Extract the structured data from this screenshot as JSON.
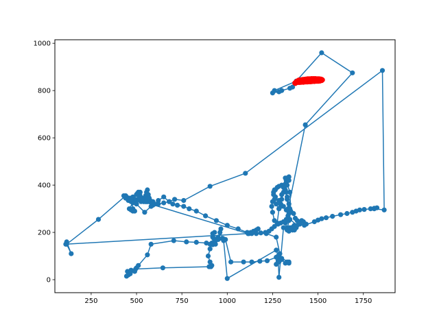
{
  "chart_data": {
    "type": "scatter",
    "title": "",
    "xlabel": "",
    "ylabel": "",
    "xlim": [
      50,
      1925
    ],
    "ylim": [
      -55,
      1015
    ],
    "grid": false,
    "x_ticks": [
      250,
      500,
      750,
      1000,
      1250,
      1500,
      1750
    ],
    "y_ticks": [
      0,
      200,
      400,
      600,
      800,
      1000
    ],
    "colors": {
      "main": "#1f77b4",
      "highlight": "#ff0000",
      "axes": "#000000",
      "background": "#ffffff"
    },
    "series": [
      {
        "style": "line-with-markers",
        "color": "#1f77b4",
        "points": [
          [
            1520,
            845
          ],
          [
            1375,
            830
          ],
          [
            1360,
            815
          ],
          [
            1345,
            810
          ],
          [
            1300,
            800
          ],
          [
            1285,
            795
          ],
          [
            1250,
            790
          ],
          [
            1260,
            800
          ],
          [
            1380,
            840
          ],
          [
            1520,
            960
          ],
          [
            1690,
            875
          ],
          [
            1430,
            655
          ],
          [
            1320,
            240
          ],
          [
            1330,
            210
          ],
          [
            1340,
            250
          ],
          [
            1335,
            300
          ],
          [
            1330,
            340
          ],
          [
            1325,
            370
          ],
          [
            1320,
            405
          ],
          [
            1325,
            420
          ],
          [
            1330,
            430
          ],
          [
            1320,
            400
          ],
          [
            1310,
            370
          ],
          [
            1300,
            340
          ],
          [
            1295,
            310
          ],
          [
            1285,
            300
          ],
          [
            1270,
            320
          ],
          [
            1260,
            340
          ],
          [
            1255,
            370
          ],
          [
            1260,
            380
          ],
          [
            1265,
            350
          ],
          [
            1250,
            330
          ],
          [
            1245,
            310
          ],
          [
            1250,
            285
          ],
          [
            1260,
            250
          ],
          [
            1275,
            240
          ],
          [
            1285,
            300
          ],
          [
            1300,
            360
          ],
          [
            1310,
            390
          ],
          [
            1320,
            430
          ],
          [
            1345,
            370
          ],
          [
            1350,
            290
          ],
          [
            1365,
            280
          ],
          [
            1375,
            260
          ],
          [
            1385,
            250
          ],
          [
            1400,
            235
          ],
          [
            1380,
            220
          ],
          [
            1360,
            210
          ],
          [
            1340,
            205
          ],
          [
            1330,
            220
          ],
          [
            1350,
            215
          ],
          [
            1370,
            230
          ],
          [
            1395,
            240
          ],
          [
            1410,
            250
          ],
          [
            1420,
            245
          ],
          [
            1435,
            235
          ],
          [
            1425,
            230
          ],
          [
            1480,
            245
          ],
          [
            1500,
            252
          ],
          [
            1520,
            258
          ],
          [
            1545,
            262
          ],
          [
            1580,
            268
          ],
          [
            1625,
            275
          ],
          [
            1660,
            280
          ],
          [
            1690,
            285
          ],
          [
            1710,
            290
          ],
          [
            1730,
            295
          ],
          [
            1755,
            297
          ],
          [
            1790,
            300
          ],
          [
            1810,
            302
          ],
          [
            1825,
            304
          ],
          [
            1810,
            300
          ],
          [
            1865,
            295
          ],
          [
            1855,
            885
          ],
          [
            1100,
            450
          ],
          [
            905,
            395
          ],
          [
            760,
            335
          ],
          [
            710,
            340
          ],
          [
            680,
            330
          ],
          [
            650,
            325
          ],
          [
            620,
            320
          ],
          [
            590,
            315
          ],
          [
            560,
            330
          ],
          [
            545,
            340
          ],
          [
            520,
            355
          ],
          [
            500,
            360
          ],
          [
            480,
            350
          ],
          [
            460,
            345
          ],
          [
            445,
            350
          ],
          [
            430,
            355
          ],
          [
            440,
            345
          ],
          [
            455,
            335
          ],
          [
            470,
            330
          ],
          [
            490,
            335
          ],
          [
            510,
            340
          ],
          [
            530,
            345
          ],
          [
            545,
            340
          ],
          [
            555,
            345
          ],
          [
            565,
            350
          ],
          [
            560,
            355
          ],
          [
            555,
            360
          ],
          [
            550,
            355
          ],
          [
            540,
            345
          ],
          [
            530,
            340
          ],
          [
            520,
            370
          ],
          [
            510,
            370
          ],
          [
            505,
            365
          ],
          [
            500,
            360
          ],
          [
            510,
            340
          ],
          [
            525,
            330
          ],
          [
            540,
            330
          ],
          [
            555,
            330
          ],
          [
            560,
            340
          ],
          [
            555,
            370
          ],
          [
            560,
            380
          ],
          [
            565,
            360
          ],
          [
            570,
            345
          ],
          [
            575,
            335
          ],
          [
            580,
            330
          ],
          [
            590,
            330
          ],
          [
            560,
            330
          ],
          [
            540,
            330
          ],
          [
            520,
            335
          ],
          [
            490,
            335
          ],
          [
            475,
            335
          ],
          [
            465,
            340
          ],
          [
            470,
            345
          ],
          [
            480,
            300
          ],
          [
            490,
            290
          ],
          [
            480,
            290
          ],
          [
            470,
            295
          ],
          [
            460,
            300
          ],
          [
            480,
            325
          ],
          [
            500,
            335
          ],
          [
            520,
            340
          ],
          [
            550,
            330
          ],
          [
            580,
            330
          ],
          [
            590,
            330
          ],
          [
            550,
            330
          ],
          [
            530,
            340
          ],
          [
            490,
            340
          ],
          [
            470,
            345
          ],
          [
            1115,
            195
          ],
          [
            1130,
            200
          ],
          [
            1145,
            205
          ],
          [
            1160,
            210
          ],
          [
            1170,
            215
          ],
          [
            1140,
            200
          ],
          [
            1120,
            195
          ],
          [
            1215,
            195
          ],
          [
            1270,
            180
          ],
          [
            1290,
            110
          ],
          [
            1285,
            75
          ],
          [
            1270,
            65
          ],
          [
            1280,
            80
          ],
          [
            1300,
            85
          ],
          [
            1320,
            70
          ],
          [
            1330,
            75
          ],
          [
            1340,
            70
          ],
          [
            1340,
            75
          ],
          [
            1300,
            90
          ],
          [
            1270,
            95
          ],
          [
            1220,
            80
          ],
          [
            1180,
            78
          ],
          [
            1135,
            75
          ],
          [
            1090,
            75
          ],
          [
            1020,
            75
          ],
          [
            990,
            170
          ],
          [
            975,
            175
          ],
          [
            960,
            200
          ],
          [
            965,
            215
          ],
          [
            950,
            180
          ],
          [
            935,
            165
          ],
          [
            920,
            180
          ],
          [
            920,
            195
          ],
          [
            930,
            200
          ],
          [
            925,
            175
          ],
          [
            915,
            155
          ],
          [
            905,
            130
          ],
          [
            895,
            100
          ],
          [
            905,
            75
          ],
          [
            915,
            60
          ],
          [
            910,
            55
          ],
          [
            900,
            55
          ],
          [
            645,
            50
          ],
          [
            495,
            45
          ],
          [
            470,
            40
          ],
          [
            450,
            35
          ],
          [
            445,
            15
          ],
          [
            455,
            20
          ],
          [
            465,
            25
          ],
          [
            490,
            35
          ],
          [
            500,
            50
          ],
          [
            510,
            60
          ],
          [
            560,
            105
          ],
          [
            580,
            150
          ],
          [
            705,
            165
          ],
          [
            775,
            160
          ],
          [
            830,
            158
          ],
          [
            885,
            155
          ],
          [
            905,
            150
          ],
          [
            920,
            148
          ],
          [
            935,
            150
          ],
          [
            950,
            170
          ],
          [
            980,
            165
          ],
          [
            1000,
            5
          ],
          [
            1270,
            125
          ],
          [
            1280,
            100
          ],
          [
            1285,
            10
          ],
          [
            1310,
            220
          ],
          [
            1345,
            220
          ],
          [
            1355,
            220
          ],
          [
            1360,
            210
          ],
          [
            1365,
            225
          ],
          [
            1370,
            210
          ],
          [
            1375,
            220
          ],
          [
            1385,
            230
          ],
          [
            1345,
            255
          ],
          [
            1335,
            270
          ],
          [
            1325,
            295
          ],
          [
            1310,
            310
          ],
          [
            1295,
            320
          ],
          [
            1285,
            335
          ],
          [
            1265,
            350
          ],
          [
            1255,
            360
          ],
          [
            1265,
            380
          ],
          [
            1275,
            390
          ],
          [
            1285,
            395
          ],
          [
            1300,
            400
          ],
          [
            1315,
            400
          ],
          [
            1325,
            410
          ],
          [
            1335,
            420
          ],
          [
            1340,
            435
          ],
          [
            1340,
            420
          ],
          [
            1330,
            400
          ],
          [
            1320,
            380
          ],
          [
            1330,
            350
          ],
          [
            1340,
            320
          ],
          [
            1345,
            300
          ],
          [
            1340,
            280
          ],
          [
            1335,
            270
          ],
          [
            1325,
            255
          ],
          [
            1310,
            245
          ],
          [
            1295,
            240
          ],
          [
            1280,
            235
          ],
          [
            1260,
            225
          ],
          [
            1245,
            215
          ],
          [
            1230,
            205
          ],
          [
            1210,
            200
          ],
          [
            1185,
            198
          ],
          [
            1160,
            195
          ],
          [
            1135,
            195
          ],
          [
            1115,
            195
          ],
          [
            110,
            150
          ],
          [
            115,
            160
          ],
          [
            140,
            110
          ],
          [
            115,
            150
          ],
          [
            290,
            255
          ],
          [
            440,
            355
          ],
          [
            470,
            340
          ],
          [
            500,
            320
          ],
          [
            545,
            285
          ],
          [
            580,
            310
          ],
          [
            600,
            320
          ],
          [
            620,
            335
          ],
          [
            650,
            350
          ],
          [
            680,
            330
          ],
          [
            700,
            320
          ],
          [
            725,
            315
          ],
          [
            760,
            310
          ],
          [
            790,
            300
          ],
          [
            830,
            290
          ],
          [
            880,
            270
          ],
          [
            940,
            250
          ],
          [
            1000,
            230
          ],
          [
            1060,
            215
          ],
          [
            1110,
            200
          ]
        ]
      },
      {
        "style": "markers",
        "color": "#ff0000",
        "points": [
          [
            1375,
            830
          ],
          [
            1380,
            838
          ],
          [
            1388,
            842
          ],
          [
            1395,
            845
          ],
          [
            1405,
            846
          ],
          [
            1415,
            847
          ],
          [
            1425,
            848
          ],
          [
            1435,
            849
          ],
          [
            1445,
            850
          ],
          [
            1455,
            850
          ],
          [
            1465,
            851
          ],
          [
            1475,
            851
          ],
          [
            1485,
            851
          ],
          [
            1495,
            850
          ],
          [
            1505,
            850
          ],
          [
            1515,
            849
          ],
          [
            1522,
            847
          ],
          [
            1525,
            845
          ],
          [
            1520,
            842
          ],
          [
            1510,
            840
          ],
          [
            1500,
            839
          ],
          [
            1490,
            839
          ],
          [
            1480,
            838
          ],
          [
            1470,
            838
          ],
          [
            1460,
            837
          ],
          [
            1450,
            837
          ],
          [
            1440,
            836
          ],
          [
            1430,
            836
          ],
          [
            1420,
            835
          ],
          [
            1410,
            835
          ],
          [
            1400,
            834
          ],
          [
            1390,
            834
          ],
          [
            1380,
            833
          ],
          [
            1372,
            832
          ]
        ]
      }
    ]
  }
}
